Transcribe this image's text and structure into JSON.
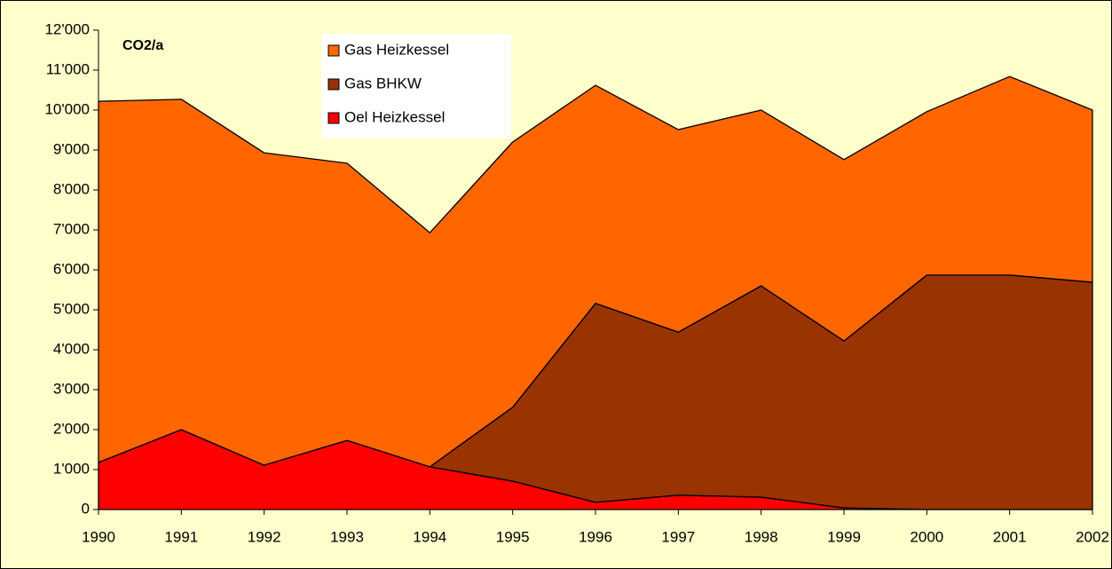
{
  "chart_data": {
    "type": "stacked_area",
    "title": "CO2/a",
    "x": [
      1990,
      1991,
      1992,
      1993,
      1994,
      1995,
      1996,
      1997,
      1998,
      1999,
      2000,
      2001,
      2002
    ],
    "series": [
      {
        "name": "Gas Heizkessel",
        "color": "#ff6600",
        "values": [
          9040,
          8270,
          7820,
          6940,
          5860,
          6640,
          5460,
          5070,
          4400,
          4540,
          4090,
          4970,
          4310
        ]
      },
      {
        "name": "Gas BHKW",
        "color": "#993300",
        "values": [
          0,
          0,
          0,
          0,
          0,
          1850,
          4980,
          4080,
          5290,
          4180,
          5870,
          5870,
          5690
        ]
      },
      {
        "name": "Oel Heizkessel",
        "color": "#ff0000",
        "values": [
          1180,
          2000,
          1110,
          1730,
          1070,
          710,
          180,
          360,
          310,
          40,
          0,
          0,
          0
        ]
      }
    ],
    "xlim": [
      1990,
      2002
    ],
    "xticks": [
      1990,
      1991,
      1992,
      1993,
      1994,
      1995,
      1996,
      1997,
      1998,
      1999,
      2000,
      2001,
      2002
    ],
    "ylim": [
      0,
      12000
    ],
    "yticks": [
      0,
      {
        "value": 1000,
        "label": "1'000"
      },
      {
        "value": 2000,
        "label": "2'000"
      },
      {
        "value": 3000,
        "label": "3'000"
      },
      {
        "value": 4000,
        "label": "4'000"
      },
      {
        "value": 5000,
        "label": "5'000"
      },
      {
        "value": 6000,
        "label": "6'000"
      },
      {
        "value": 7000,
        "label": "7'000"
      },
      {
        "value": 8000,
        "label": "8'000"
      },
      {
        "value": 9000,
        "label": "9'000"
      },
      {
        "value": 10000,
        "label": "10'000"
      },
      {
        "value": 11000,
        "label": "11'000"
      },
      {
        "value": 12000,
        "label": "12'000"
      }
    ],
    "grid": false
  }
}
